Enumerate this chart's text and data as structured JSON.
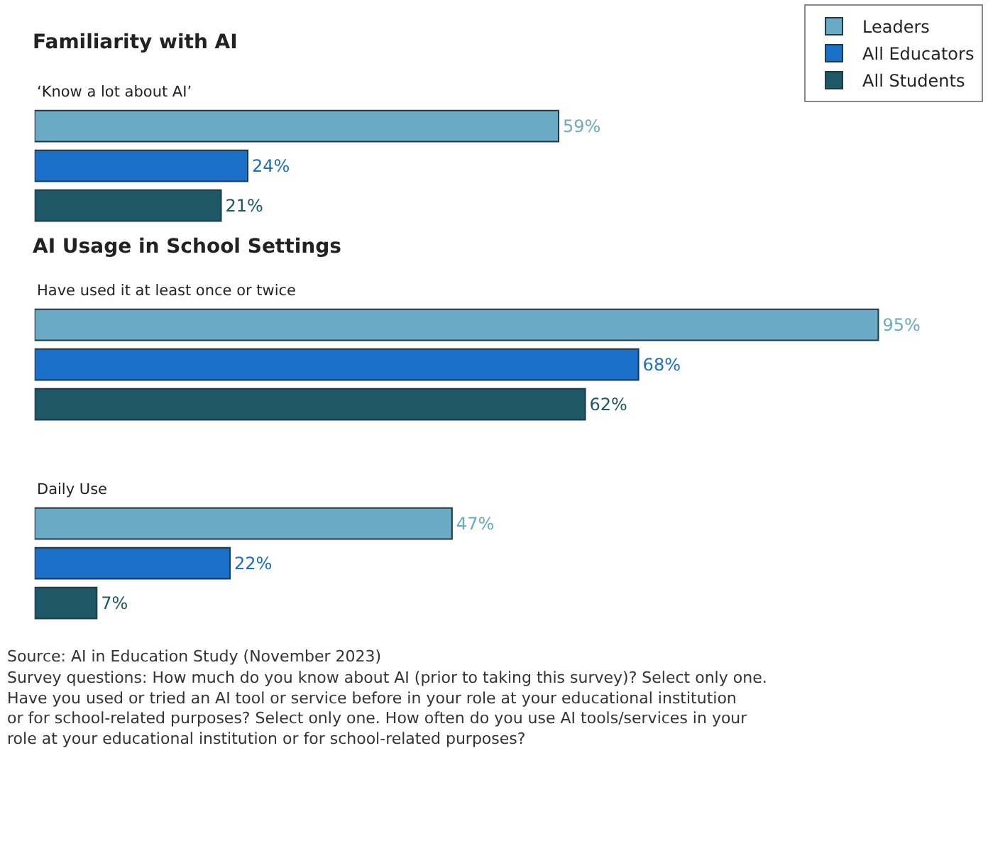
{
  "chart_data": {
    "type": "bar",
    "orientation": "horizontal",
    "title": "Familiarity with AI",
    "categories": [
      "‘Know a lot about AI’",
      "Have used it at least once or twice",
      "Daily Use"
    ],
    "legend": "top right",
    "series": [
      {
        "name": "Leaders",
        "color": "#6aaac4",
        "values": [
          59,
          95,
          47
        ],
        "value_labels": [
          "59%",
          "95%",
          "47%"
        ]
      },
      {
        "name": "All Educators",
        "color": "#1a6fc9",
        "values": [
          24,
          68,
          22
        ],
        "value_labels": [
          "24%",
          "68%",
          "22%"
        ]
      },
      {
        "name": "All Students",
        "color": "#1e5766",
        "values": [
          21,
          62,
          7
        ],
        "value_labels": [
          "21%",
          "62%",
          "7%"
        ]
      }
    ],
    "annotations": [
      "AI Usage in School Settings",
      "Source: AI in Education Study (November 2023)",
      "Survey questions: How much do you know about AI (prior to taking this survey)? Select only one. Have you used or tried an AI tool or service before in your role at your educational institution or for school-related purposes? Select only one. How often do you use AI tools/services in your role at your educational institution or for school-related purposes?"
    ]
  }
}
